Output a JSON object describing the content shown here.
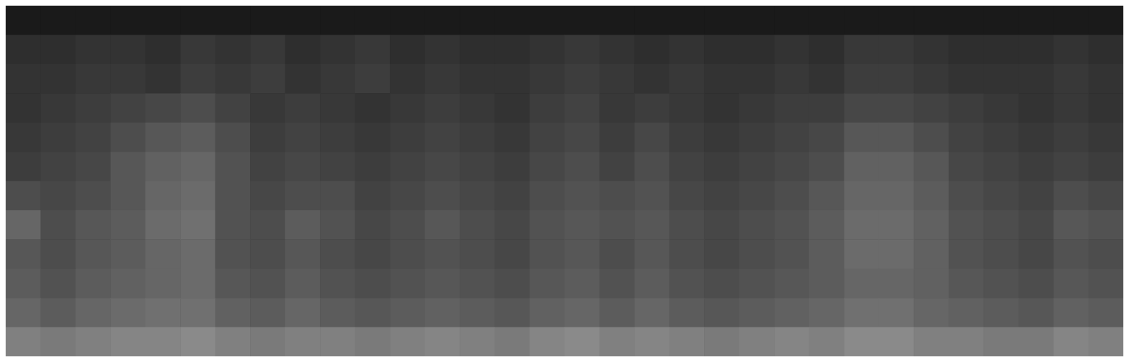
{
  "chart_data": {
    "type": "heatmap",
    "tick_labels": false,
    "zlim": [
      0,
      100
    ],
    "cells": [
      [
        10,
        10,
        10,
        10,
        10,
        10,
        10,
        10,
        10,
        10,
        10,
        10,
        10,
        10,
        10,
        10,
        10,
        10,
        10,
        10,
        10,
        10,
        10,
        10,
        10,
        10,
        10,
        10,
        10,
        10,
        10,
        10
      ],
      [
        18,
        18,
        20,
        20,
        18,
        22,
        20,
        22,
        18,
        20,
        22,
        18,
        20,
        18,
        18,
        20,
        22,
        20,
        18,
        20,
        18,
        18,
        20,
        18,
        22,
        22,
        20,
        18,
        18,
        18,
        20,
        18
      ],
      [
        20,
        20,
        22,
        22,
        20,
        24,
        22,
        24,
        20,
        22,
        24,
        20,
        22,
        20,
        20,
        22,
        24,
        22,
        20,
        22,
        20,
        20,
        22,
        20,
        24,
        24,
        22,
        20,
        20,
        20,
        22,
        20
      ],
      [
        20,
        22,
        24,
        26,
        28,
        30,
        26,
        22,
        24,
        22,
        20,
        22,
        24,
        22,
        20,
        24,
        26,
        22,
        24,
        22,
        20,
        22,
        24,
        24,
        28,
        28,
        26,
        24,
        22,
        20,
        22,
        20
      ],
      [
        22,
        24,
        26,
        30,
        34,
        36,
        30,
        24,
        26,
        24,
        22,
        24,
        26,
        24,
        22,
        26,
        28,
        24,
        28,
        24,
        22,
        24,
        26,
        28,
        34,
        34,
        30,
        26,
        24,
        22,
        24,
        22
      ],
      [
        24,
        26,
        28,
        34,
        38,
        40,
        32,
        26,
        28,
        26,
        24,
        26,
        28,
        26,
        24,
        28,
        30,
        26,
        30,
        26,
        24,
        26,
        28,
        30,
        38,
        38,
        34,
        28,
        26,
        24,
        26,
        24
      ],
      [
        30,
        28,
        30,
        34,
        40,
        42,
        32,
        28,
        30,
        30,
        26,
        28,
        30,
        28,
        26,
        30,
        32,
        30,
        32,
        28,
        26,
        28,
        30,
        34,
        40,
        40,
        36,
        30,
        28,
        26,
        30,
        28
      ],
      [
        40,
        30,
        34,
        36,
        42,
        44,
        32,
        30,
        36,
        32,
        28,
        30,
        34,
        30,
        28,
        32,
        34,
        32,
        34,
        30,
        28,
        30,
        32,
        36,
        42,
        42,
        38,
        32,
        30,
        28,
        34,
        32
      ],
      [
        34,
        30,
        34,
        36,
        40,
        42,
        32,
        30,
        34,
        30,
        28,
        30,
        32,
        30,
        28,
        32,
        34,
        30,
        34,
        30,
        28,
        30,
        32,
        36,
        42,
        42,
        38,
        32,
        30,
        28,
        32,
        30
      ],
      [
        36,
        32,
        36,
        38,
        40,
        42,
        34,
        32,
        36,
        32,
        30,
        32,
        34,
        32,
        30,
        34,
        36,
        32,
        36,
        32,
        30,
        32,
        34,
        36,
        40,
        40,
        38,
        34,
        32,
        30,
        34,
        32
      ],
      [
        40,
        36,
        40,
        42,
        44,
        44,
        38,
        36,
        40,
        36,
        34,
        36,
        38,
        36,
        34,
        38,
        40,
        36,
        40,
        36,
        34,
        36,
        38,
        40,
        44,
        44,
        40,
        38,
        36,
        34,
        38,
        36
      ],
      [
        50,
        48,
        50,
        52,
        52,
        54,
        50,
        48,
        50,
        50,
        48,
        50,
        52,
        50,
        48,
        52,
        54,
        50,
        52,
        50,
        48,
        50,
        52,
        50,
        54,
        54,
        50,
        50,
        48,
        48,
        52,
        50
      ]
    ]
  }
}
